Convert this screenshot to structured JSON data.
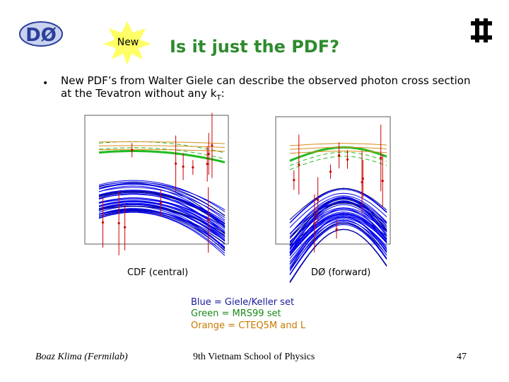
{
  "logo": "DØ",
  "header": {
    "badge": "New",
    "title": "Is it just the PDF?"
  },
  "bullet": {
    "text": "New PDF’s from Walter Giele can describe the observed photon cross section at the Tevatron without any k",
    "subscript": "T",
    "tail": ":"
  },
  "plots": [
    {
      "caption": "CDF (central)"
    },
    {
      "caption": "DØ (forward)"
    }
  ],
  "legend": [
    "Blue = Giele/Keller set",
    "Green = MRS99 set",
    "Orange = CTEQ5M and L"
  ],
  "footer": {
    "left": "Boaz Klima (Fermilab)",
    "center": "9th Vietnam School of Physics",
    "right": "47"
  }
}
